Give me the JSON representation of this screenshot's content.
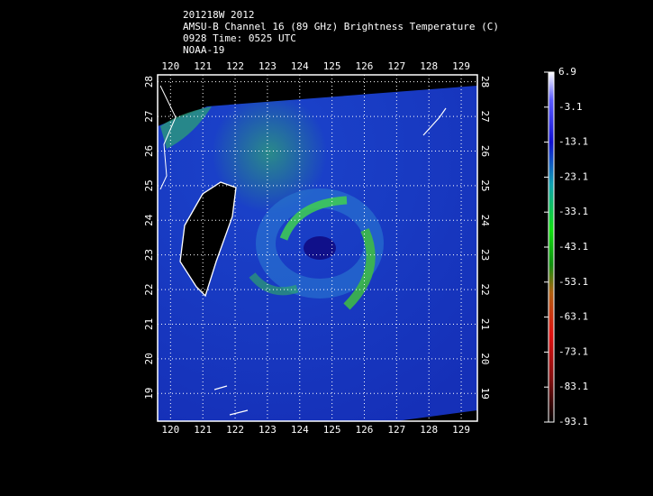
{
  "chart_data": {
    "type": "map",
    "title_lines": [
      "201218W 2012",
      "AMSU-B Channel 16 (89 GHz) Brightness Temperature (C)",
      "0928 Time: 0525 UTC",
      "NOAA-19"
    ],
    "xlim": [
      119.6,
      129.5
    ],
    "xticks": [
      120,
      121,
      122,
      123,
      124,
      125,
      126,
      127,
      128,
      129
    ],
    "ylim": [
      18.2,
      28.2
    ],
    "yticks": [
      19,
      20,
      21,
      22,
      23,
      24,
      25,
      26,
      27,
      28
    ],
    "grid": true,
    "colorbar": {
      "lim": [
        -93.1,
        6.9
      ],
      "ticks": [
        6.9,
        -3.1,
        -13.1,
        -23.1,
        -33.1,
        -43.1,
        -53.1,
        -63.1,
        -73.1,
        -83.1,
        -93.1
      ]
    }
  }
}
